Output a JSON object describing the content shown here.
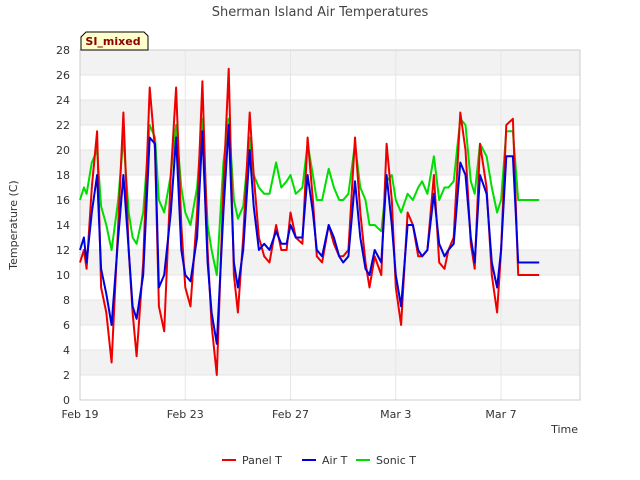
{
  "chart_data": {
    "type": "line",
    "title": "Sherman Island Air Temperatures",
    "xlabel": "Time",
    "ylabel": "Temperature (C)",
    "badge": "SI_mixed",
    "x_start": "Feb 19",
    "x_end": "Mar 10",
    "xlim": [
      "Feb 19",
      "Mar 10"
    ],
    "ylim": [
      0,
      28
    ],
    "y_ticks": [
      0,
      2,
      4,
      6,
      8,
      10,
      12,
      14,
      16,
      18,
      20,
      22,
      24,
      26,
      28
    ],
    "x_ticks": [
      {
        "label": "Feb 19",
        "day": 0
      },
      {
        "label": "Feb 23",
        "day": 4
      },
      {
        "label": "Feb 27",
        "day": 8
      },
      {
        "label": "Mar 3",
        "day": 12
      },
      {
        "label": "Mar 7",
        "day": 16
      }
    ],
    "background_bands": true,
    "legend_position": "bottom-center",
    "series": [
      {
        "name": "Panel T",
        "color": "#ee0000",
        "x": [
          0.0,
          0.15,
          0.25,
          0.45,
          0.65,
          0.8,
          1.0,
          1.2,
          1.45,
          1.65,
          1.85,
          2.0,
          2.15,
          2.4,
          2.65,
          2.85,
          3.0,
          3.2,
          3.45,
          3.65,
          3.85,
          4.0,
          4.2,
          4.45,
          4.65,
          4.85,
          5.0,
          5.2,
          5.45,
          5.65,
          5.85,
          6.0,
          6.2,
          6.45,
          6.6,
          6.8,
          7.0,
          7.2,
          7.45,
          7.65,
          7.85,
          8.0,
          8.2,
          8.45,
          8.65,
          8.85,
          9.0,
          9.2,
          9.45,
          9.65,
          9.85,
          10.0,
          10.2,
          10.45,
          10.65,
          10.85,
          11.0,
          11.2,
          11.45,
          11.65,
          11.85,
          12.0,
          12.2,
          12.45,
          12.65,
          12.85,
          13.0,
          13.2,
          13.45,
          13.65,
          13.85,
          14.0,
          14.2,
          14.45,
          14.65,
          14.85,
          15.0,
          15.2,
          15.45,
          15.65,
          15.85,
          16.0,
          16.2,
          16.45,
          16.65,
          16.85,
          17.0,
          17.2,
          17.45
        ],
        "y": [
          11,
          12,
          10.5,
          17,
          21.5,
          9,
          7,
          3,
          14,
          23,
          12,
          7,
          3.5,
          11,
          25,
          20,
          7.5,
          5.5,
          18,
          25,
          14,
          9,
          7.5,
          15,
          25.5,
          12,
          6,
          2,
          17,
          26.5,
          10,
          7,
          13,
          23,
          18,
          13,
          11.5,
          11,
          14,
          12,
          12,
          15,
          13,
          12.5,
          21,
          16,
          11.5,
          11,
          14,
          12.5,
          11.5,
          11.5,
          12,
          21,
          15,
          11,
          9,
          11.5,
          10,
          20.5,
          16,
          9,
          6,
          15,
          14,
          11.5,
          11.5,
          12,
          18,
          11,
          10.5,
          12,
          13,
          23,
          20,
          12.5,
          10.5,
          20.5,
          17,
          10,
          7,
          12,
          22,
          22.5,
          10,
          10,
          10,
          10,
          10
        ]
      },
      {
        "name": "Air T",
        "color": "#0000dd",
        "x": [
          0.0,
          0.15,
          0.25,
          0.45,
          0.65,
          0.8,
          1.0,
          1.2,
          1.45,
          1.65,
          1.85,
          2.0,
          2.15,
          2.4,
          2.65,
          2.85,
          3.0,
          3.2,
          3.45,
          3.65,
          3.85,
          4.0,
          4.2,
          4.45,
          4.65,
          4.85,
          5.0,
          5.2,
          5.45,
          5.65,
          5.85,
          6.0,
          6.2,
          6.45,
          6.6,
          6.8,
          7.0,
          7.2,
          7.45,
          7.65,
          7.85,
          8.0,
          8.2,
          8.45,
          8.65,
          8.85,
          9.0,
          9.2,
          9.45,
          9.65,
          9.85,
          10.0,
          10.2,
          10.45,
          10.65,
          10.85,
          11.0,
          11.2,
          11.45,
          11.65,
          11.85,
          12.0,
          12.2,
          12.45,
          12.65,
          12.85,
          13.0,
          13.2,
          13.45,
          13.65,
          13.85,
          14.0,
          14.2,
          14.45,
          14.65,
          14.85,
          15.0,
          15.2,
          15.45,
          15.65,
          15.85,
          16.0,
          16.2,
          16.45,
          16.65,
          16.85,
          17.0,
          17.2,
          17.45
        ],
        "y": [
          12,
          13,
          11,
          15,
          18,
          10.5,
          8.5,
          6,
          13,
          18,
          12,
          7.5,
          6.5,
          10,
          21,
          20.5,
          9,
          10,
          15,
          21,
          12,
          10,
          9.5,
          13,
          21.5,
          11,
          7,
          4.5,
          15,
          22,
          11,
          9,
          12,
          20,
          15.5,
          12,
          12.5,
          12,
          13.5,
          12.5,
          12.5,
          14,
          13,
          13,
          18,
          15,
          12,
          11.5,
          14,
          13,
          11.5,
          11,
          11.5,
          17.5,
          13,
          10.5,
          10,
          12,
          11,
          18,
          14,
          10,
          7.5,
          14,
          14,
          12,
          11.5,
          12,
          16.5,
          12.5,
          11.5,
          12,
          12.5,
          19,
          18,
          13,
          11,
          18,
          16.5,
          11,
          9,
          12,
          19.5,
          19.5,
          11,
          11,
          11,
          11,
          11
        ]
      },
      {
        "name": "Sonic T",
        "color": "#00dd00",
        "x": [
          0.0,
          0.15,
          0.25,
          0.45,
          0.65,
          0.8,
          1.0,
          1.2,
          1.45,
          1.65,
          1.85,
          2.0,
          2.15,
          2.4,
          2.65,
          2.85,
          3.0,
          3.2,
          3.45,
          3.65,
          3.85,
          4.0,
          4.2,
          4.45,
          4.65,
          4.85,
          5.0,
          5.2,
          5.45,
          5.65,
          5.85,
          6.0,
          6.2,
          6.45,
          6.6,
          6.8,
          7.0,
          7.2,
          7.45,
          7.65,
          7.85,
          8.0,
          8.2,
          8.45,
          8.65,
          8.85,
          9.0,
          9.2,
          9.45,
          9.65,
          9.85,
          10.0,
          10.2,
          10.45,
          10.65,
          10.85,
          11.0,
          11.2,
          11.45,
          11.65,
          11.85,
          12.0,
          12.2,
          12.45,
          12.65,
          12.85,
          13.0,
          13.2,
          13.45,
          13.65,
          13.85,
          14.0,
          14.2,
          14.45,
          14.65,
          14.85,
          15.0,
          15.2,
          15.45,
          15.65,
          15.85,
          16.0,
          16.2,
          16.45,
          16.65,
          16.85,
          17.0,
          17.2,
          17.45
        ],
        "y": [
          16,
          17,
          16.5,
          19,
          20,
          15.5,
          14,
          12,
          16,
          21,
          15,
          13,
          12.5,
          15,
          22,
          21,
          16,
          15,
          18,
          22,
          17,
          15,
          14,
          17,
          22.5,
          14,
          12,
          10,
          19,
          22.5,
          16,
          14.5,
          15.5,
          21,
          18,
          17,
          16.5,
          16.5,
          19,
          17,
          17.5,
          18,
          16.5,
          17,
          20.5,
          18,
          16,
          16,
          18.5,
          17,
          16,
          16,
          16.5,
          20.5,
          17,
          16,
          14,
          14,
          13.5,
          17.5,
          18,
          16,
          15,
          16.5,
          16,
          17,
          17.5,
          16.5,
          19.5,
          16,
          17,
          17,
          17.5,
          22.5,
          22,
          17.5,
          16.5,
          20.5,
          19.5,
          17,
          15,
          16,
          21.5,
          21.5,
          16,
          16,
          16,
          16,
          16
        ]
      }
    ]
  }
}
